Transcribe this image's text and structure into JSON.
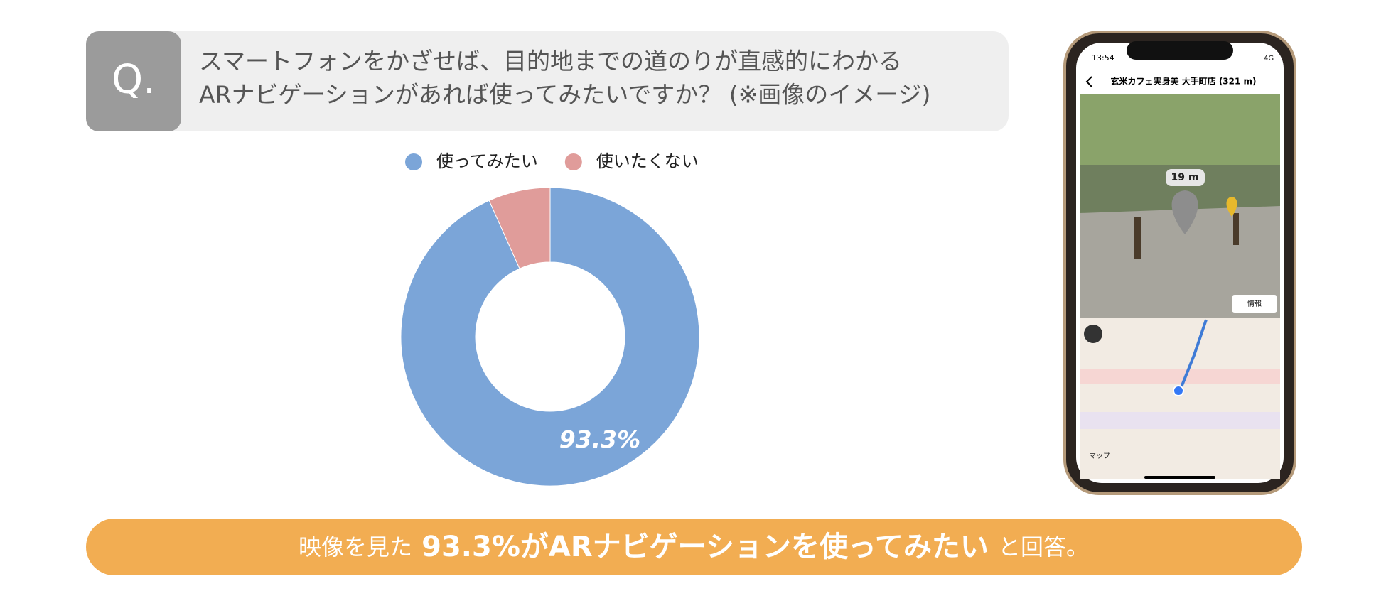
{
  "question": {
    "mark": "Q.",
    "lines": [
      "スマートフォンをかざせば、目的地までの道のりが直感的にわかる",
      "ARナビゲーションがあれば使ってみたいですか？ (※画像のイメージ)"
    ]
  },
  "chart_data": {
    "type": "pie",
    "donut": true,
    "categories": [
      "使ってみたい",
      "使いたくない"
    ],
    "values": [
      93.3,
      6.7
    ],
    "value_labels": [
      "93.3%",
      null
    ],
    "colors": [
      "#7ba5d8",
      "#e09c9a"
    ],
    "legend": "top"
  },
  "phone": {
    "time": "13:54",
    "network": "4G",
    "title": "玄米カフェ実身美 大手町店 (321 m)",
    "distance": "19 m",
    "button": "情報",
    "map_label": "マップ"
  },
  "banner": {
    "before": "映像を見た",
    "emphasis": "93.3%がARナビゲーションを使ってみたい",
    "after": "と回答。"
  }
}
